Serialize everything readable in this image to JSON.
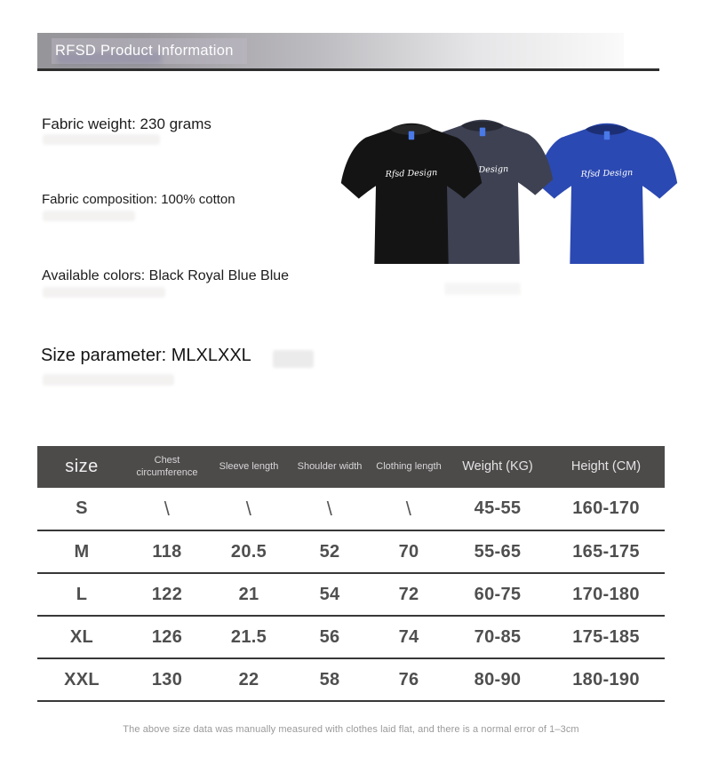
{
  "header": {
    "title": "RFSD Product Information"
  },
  "info": {
    "fabric_weight": "Fabric weight: 230 grams",
    "fabric_composition": "Fabric composition: 100% cotton",
    "available_colors": "Available colors: Black Royal Blue Blue",
    "size_parameter": "Size parameter: MLXLXXL"
  },
  "product_image": {
    "print_text": "Rfsd Design",
    "shirt_colors": [
      "#141414",
      "#3d4152",
      "#2b49b2"
    ],
    "tag_color": "#4a79e8"
  },
  "size_table": {
    "headers": [
      "size",
      "Chest circumference",
      "Sleeve length",
      "Shoulder width",
      "Clothing length",
      "Weight (KG)",
      "Height (CM)"
    ],
    "rows": [
      [
        "S",
        "\\",
        "\\",
        "\\",
        "\\",
        "45-55",
        "160-170"
      ],
      [
        "M",
        "118",
        "20.5",
        "52",
        "70",
        "55-65",
        "165-175"
      ],
      [
        "L",
        "122",
        "21",
        "54",
        "72",
        "60-75",
        "170-180"
      ],
      [
        "XL",
        "126",
        "21.5",
        "56",
        "74",
        "70-85",
        "175-185"
      ],
      [
        "XXL",
        "130",
        "22",
        "58",
        "76",
        "80-90",
        "180-190"
      ]
    ]
  },
  "footer": {
    "note": "The above size data was manually measured with clothes laid flat, and there is a normal error of 1–3cm"
  },
  "colors": {
    "table_header_bg": "#4d4a4a",
    "row_divider": "#383838",
    "banner_dark": "#969599",
    "accent_blue": "#2b49b2"
  }
}
